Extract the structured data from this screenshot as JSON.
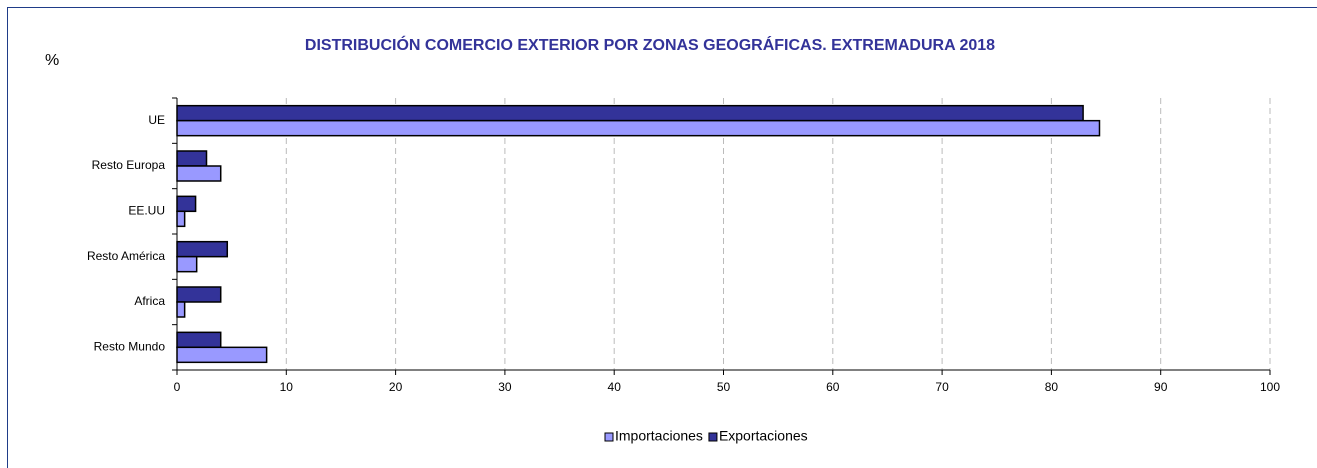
{
  "chart_data": {
    "type": "bar",
    "orientation": "horizontal",
    "title": "DISTRIBUCIÓN COMERCIO EXTERIOR POR ZONAS GEOGRÁFICAS. EXTREMADURA 2018",
    "y_label": "%",
    "categories": [
      "UE",
      "Resto Europa",
      "EE.UU",
      "Resto América",
      "Africa",
      "Resto Mundo"
    ],
    "series": [
      {
        "name": "Importaciones",
        "color": "#9999ff",
        "values": [
          84.4,
          4.0,
          0.7,
          1.8,
          0.7,
          8.2
        ]
      },
      {
        "name": "Exportaciones",
        "color": "#333399",
        "values": [
          82.9,
          2.7,
          1.7,
          4.6,
          4.0,
          4.0
        ]
      }
    ],
    "xlim": [
      0,
      100
    ],
    "xticks": [
      0,
      10,
      20,
      30,
      40,
      50,
      60,
      70,
      80,
      90,
      100
    ],
    "grid": true,
    "legend": "bottom"
  }
}
